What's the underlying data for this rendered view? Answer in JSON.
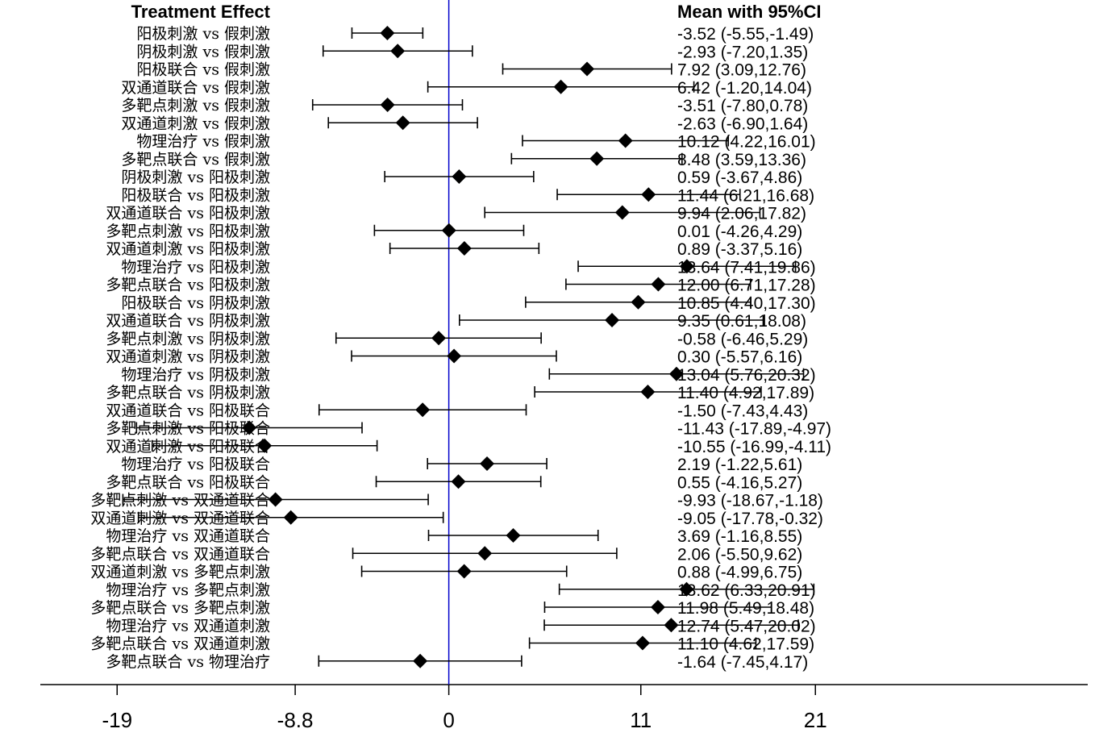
{
  "chart_data": {
    "type": "forest",
    "header_left": "Treatment Effect",
    "header_right": "Mean with 95%CI",
    "rows": [
      {
        "label": "阳极刺激 vs 假刺激",
        "mean": -3.52,
        "lo": -5.55,
        "hi": -1.49,
        "text": "-3.52 (-5.55,-1.49)"
      },
      {
        "label": "阴极刺激 vs 假刺激",
        "mean": -2.93,
        "lo": -7.2,
        "hi": 1.35,
        "text": "-2.93 (-7.20,1.35)"
      },
      {
        "label": "阳极联合 vs 假刺激",
        "mean": 7.92,
        "lo": 3.09,
        "hi": 12.76,
        "text": "7.92 (3.09,12.76)"
      },
      {
        "label": "双通道联合 vs 假刺激",
        "mean": 6.42,
        "lo": -1.2,
        "hi": 14.04,
        "text": "6.42 (-1.20,14.04)"
      },
      {
        "label": "多靶点刺激 vs 假刺激",
        "mean": -3.51,
        "lo": -7.8,
        "hi": 0.78,
        "text": "-3.51 (-7.80,0.78)"
      },
      {
        "label": "双通道刺激 vs 假刺激",
        "mean": -2.63,
        "lo": -6.9,
        "hi": 1.64,
        "text": "-2.63 (-6.90,1.64)"
      },
      {
        "label": "物理治疗 vs 假刺激",
        "mean": 10.12,
        "lo": 4.22,
        "hi": 16.01,
        "text": "10.12 (4.22,16.01)"
      },
      {
        "label": "多靶点联合 vs 假刺激",
        "mean": 8.48,
        "lo": 3.59,
        "hi": 13.36,
        "text": "8.48 (3.59,13.36)"
      },
      {
        "label": "阴极刺激 vs 阳极刺激",
        "mean": 0.59,
        "lo": -3.67,
        "hi": 4.86,
        "text": "0.59 (-3.67,4.86)"
      },
      {
        "label": "阳极联合 vs 阳极刺激",
        "mean": 11.44,
        "lo": 6.21,
        "hi": 16.68,
        "text": "11.44 (6.21,16.68)"
      },
      {
        "label": "双通道联合 vs 阳极刺激",
        "mean": 9.94,
        "lo": 2.06,
        "hi": 17.82,
        "text": "9.94 (2.06,17.82)"
      },
      {
        "label": "多靶点刺激 vs 阳极刺激",
        "mean": 0.01,
        "lo": -4.26,
        "hi": 4.29,
        "text": "0.01 (-4.26,4.29)"
      },
      {
        "label": "双通道刺激 vs 阳极刺激",
        "mean": 0.89,
        "lo": -3.37,
        "hi": 5.16,
        "text": "0.89 (-3.37,5.16)"
      },
      {
        "label": "物理治疗 vs 阳极刺激",
        "mean": 13.64,
        "lo": 7.41,
        "hi": 19.86,
        "text": "13.64 (7.41,19.86)"
      },
      {
        "label": "多靶点联合 vs 阳极刺激",
        "mean": 12.0,
        "lo": 6.71,
        "hi": 17.28,
        "text": "12.00 (6.71,17.28)"
      },
      {
        "label": "阳极联合 vs 阴极刺激",
        "mean": 10.85,
        "lo": 4.4,
        "hi": 17.3,
        "text": "10.85 (4.40,17.30)"
      },
      {
        "label": "双通道联合 vs 阴极刺激",
        "mean": 9.35,
        "lo": 0.61,
        "hi": 18.08,
        "text": "9.35 (0.61,18.08)"
      },
      {
        "label": "多靶点刺激 vs 阴极刺激",
        "mean": -0.58,
        "lo": -6.46,
        "hi": 5.29,
        "text": "-0.58 (-6.46,5.29)"
      },
      {
        "label": "双通道刺激 vs 阴极刺激",
        "mean": 0.3,
        "lo": -5.57,
        "hi": 6.16,
        "text": "0.30 (-5.57,6.16)"
      },
      {
        "label": "物理治疗 vs 阴极刺激",
        "mean": 13.04,
        "lo": 5.76,
        "hi": 20.32,
        "text": "13.04 (5.76,20.32)"
      },
      {
        "label": "多靶点联合 vs 阴极刺激",
        "mean": 11.4,
        "lo": 4.92,
        "hi": 17.89,
        "text": "11.40 (4.92,17.89)"
      },
      {
        "label": "双通道联合 vs 阳极联合",
        "mean": -1.5,
        "lo": -7.43,
        "hi": 4.43,
        "text": "-1.50 (-7.43,4.43)"
      },
      {
        "label": "多靶点刺激 vs 阳极联合",
        "mean": -11.43,
        "lo": -17.89,
        "hi": -4.97,
        "text": "-11.43 (-17.89,-4.97)"
      },
      {
        "label": "双通道刺激 vs 阳极联合",
        "mean": -10.55,
        "lo": -16.99,
        "hi": -4.11,
        "text": "-10.55 (-16.99,-4.11)"
      },
      {
        "label": "物理治疗 vs 阳极联合",
        "mean": 2.19,
        "lo": -1.22,
        "hi": 5.61,
        "text": "2.19 (-1.22,5.61)"
      },
      {
        "label": "多靶点联合 vs 阳极联合",
        "mean": 0.55,
        "lo": -4.16,
        "hi": 5.27,
        "text": "0.55 (-4.16,5.27)"
      },
      {
        "label": "多靶点刺激 vs 双通道联合",
        "mean": -9.93,
        "lo": -18.67,
        "hi": -1.18,
        "text": "-9.93 (-18.67,-1.18)"
      },
      {
        "label": "双通道刺激 vs 双通道联合",
        "mean": -9.05,
        "lo": -17.78,
        "hi": -0.32,
        "text": "-9.05 (-17.78,-0.32)"
      },
      {
        "label": "物理治疗 vs 双通道联合",
        "mean": 3.69,
        "lo": -1.16,
        "hi": 8.55,
        "text": "3.69 (-1.16,8.55)"
      },
      {
        "label": "多靶点联合 vs 双通道联合",
        "mean": 2.06,
        "lo": -5.5,
        "hi": 9.62,
        "text": "2.06 (-5.50,9.62)"
      },
      {
        "label": "双通道刺激 vs 多靶点刺激",
        "mean": 0.88,
        "lo": -4.99,
        "hi": 6.75,
        "text": "0.88 (-4.99,6.75)"
      },
      {
        "label": "物理治疗 vs 多靶点刺激",
        "mean": 13.62,
        "lo": 6.33,
        "hi": 20.91,
        "text": "13.62 (6.33,20.91)"
      },
      {
        "label": "多靶点联合 vs 多靶点刺激",
        "mean": 11.98,
        "lo": 5.49,
        "hi": 18.48,
        "text": "11.98 (5.49,18.48)"
      },
      {
        "label": "物理治疗 vs 双通道刺激",
        "mean": 12.74,
        "lo": 5.47,
        "hi": 20.02,
        "text": "12.74 (5.47,20.02)"
      },
      {
        "label": "多靶点联合 vs 双通道刺激",
        "mean": 11.1,
        "lo": 4.62,
        "hi": 17.59,
        "text": "11.10 (4.62,17.59)"
      },
      {
        "label": "多靶点联合 vs 物理治疗",
        "mean": -1.64,
        "lo": -7.45,
        "hi": 4.17,
        "text": "-1.64 (-7.45,4.17)"
      }
    ],
    "x_ticks": [
      {
        "value": -19,
        "label": "-19"
      },
      {
        "value": -8.8,
        "label": "-8.8"
      },
      {
        "value": 0,
        "label": "0"
      },
      {
        "value": 11,
        "label": "11"
      },
      {
        "value": 21,
        "label": "21"
      }
    ],
    "xlim": [
      -23.4,
      36.6
    ],
    "reference_line": 0,
    "colors": {
      "reference_line": "#0000cc",
      "marker": "#000000",
      "text": "#000000"
    }
  }
}
